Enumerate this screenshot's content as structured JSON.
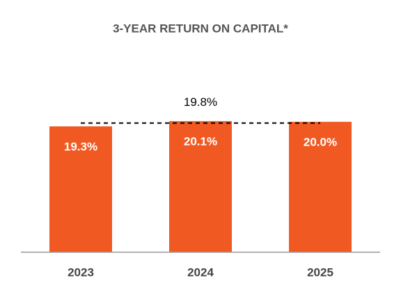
{
  "chart_data": {
    "type": "bar",
    "title": "3-YEAR RETURN ON CAPITAL*",
    "categories": [
      "2023",
      "2024",
      "2025"
    ],
    "values": [
      19.3,
      20.1,
      20.0
    ],
    "value_labels": [
      "19.3%",
      "20.1%",
      "20.0%"
    ],
    "color": "#f05a22",
    "ylim": [
      0,
      25
    ],
    "reference_line": {
      "value": 19.8,
      "label": "19.8%",
      "color": "#000000"
    }
  }
}
